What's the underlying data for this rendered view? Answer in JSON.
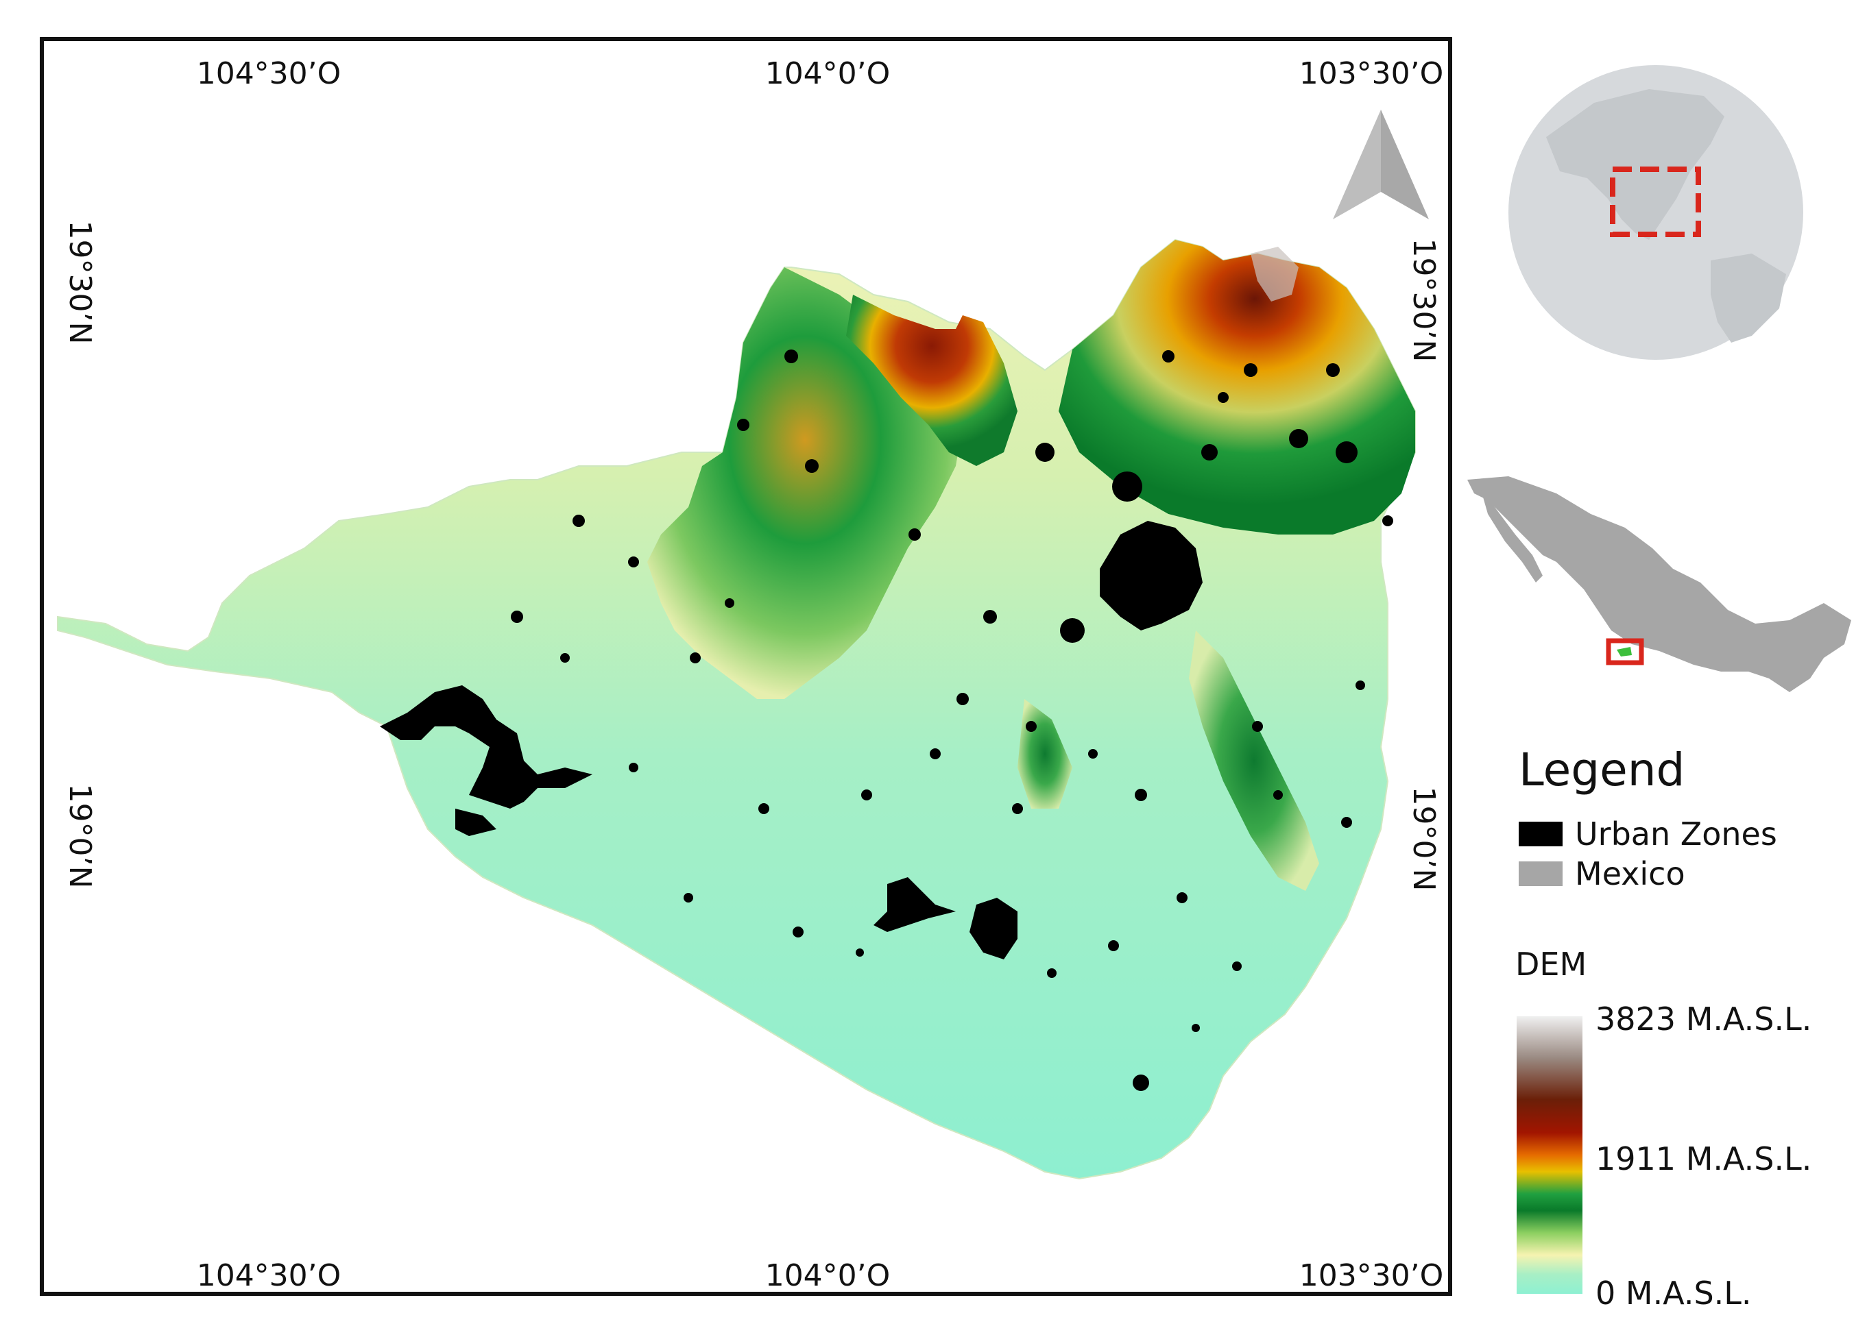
{
  "map": {
    "top_ticks": [
      "104°30’O",
      "104°0’O",
      "103°30’O"
    ],
    "bottom_ticks": [
      "104°30’O",
      "104°0’O",
      "103°30’O"
    ],
    "left_ticks": [
      "19°30’N",
      "19°0’N"
    ],
    "right_ticks": [
      "19°30’N",
      "19°0’N"
    ],
    "colors": {
      "urban": "#000000",
      "mexico": "#a6a6a6",
      "inset_box": "#d9261c",
      "state_highlight": "#3cbf3c"
    }
  },
  "legend": {
    "title": "Legend",
    "items": [
      {
        "label": "Urban Zones",
        "color": "#000000"
      },
      {
        "label": "Mexico",
        "color": "#a6a6a6"
      }
    ],
    "dem": {
      "title": "DEM",
      "max_label": "3823 M.A.S.L.",
      "mid_label": "1911 M.A.S.L.",
      "min_label": "0 M.A.S.L."
    }
  }
}
